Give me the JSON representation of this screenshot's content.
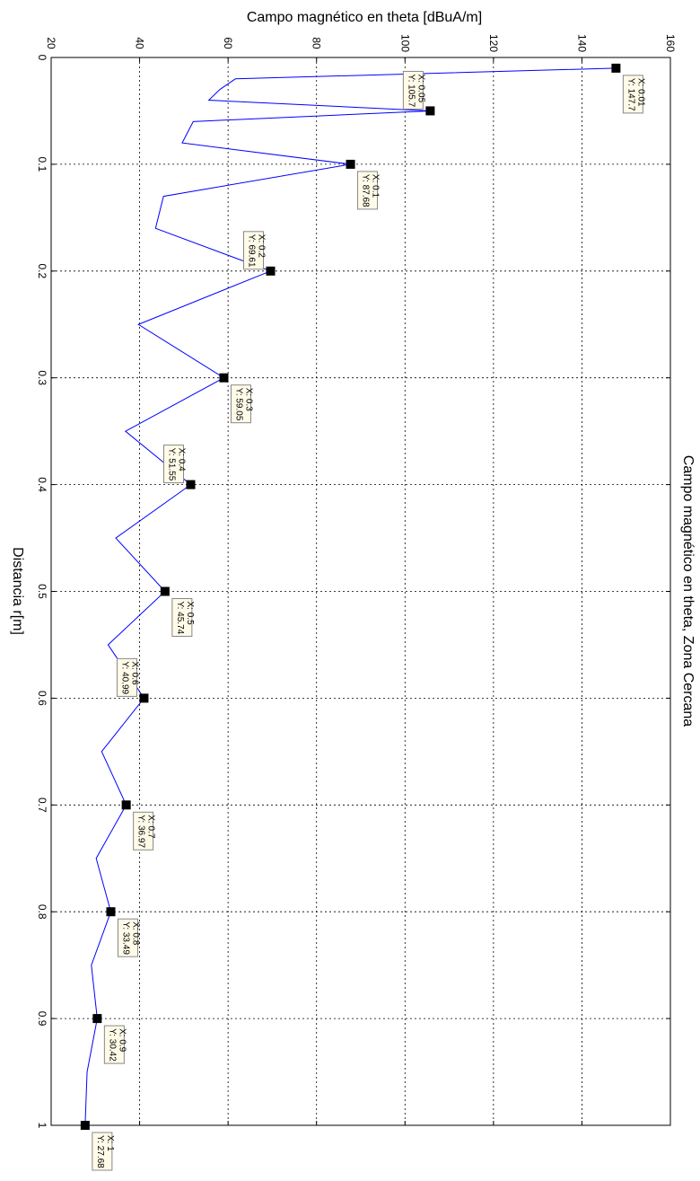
{
  "chart_data": {
    "type": "line",
    "title": "Campo magnético en theta, Zona Cercana",
    "xlabel": "Distancia r[m]",
    "ylabel": "Campo magnético en theta [dBuA/m]",
    "xlim": [
      0,
      1
    ],
    "ylim": [
      20,
      160
    ],
    "x_ticks": [
      "0",
      "0.1",
      "0.2",
      "0.3",
      "0.4",
      "0.5",
      "0.6",
      "0.7",
      "0.8",
      "0.9",
      "1"
    ],
    "y_ticks": [
      "20",
      "40",
      "60",
      "80",
      "100",
      "120",
      "140",
      "160"
    ],
    "grid": true,
    "line_color": "#0000ff",
    "marker_color": "#000000",
    "tooltip_bg": "#fffbe8",
    "curve_k": 27.68,
    "curve_x": [
      0.01,
      0.02,
      0.03,
      0.04,
      0.05,
      0.06,
      0.08,
      0.1,
      0.13,
      0.16,
      0.2,
      0.25,
      0.3,
      0.35,
      0.4,
      0.45,
      0.5,
      0.55,
      0.6,
      0.65,
      0.7,
      0.75,
      0.8,
      0.85,
      0.9,
      0.95,
      1.0
    ],
    "markers": [
      {
        "x": 0.01,
        "y": 147.7,
        "label_x": "X: 0.01",
        "label_y": "Y: 147.7"
      },
      {
        "x": 0.05,
        "y": 105.7,
        "label_x": "X: 0.05",
        "label_y": "Y: 105.7"
      },
      {
        "x": 0.1,
        "y": 87.68,
        "label_x": "X: 0.1",
        "label_y": "Y: 87.68"
      },
      {
        "x": 0.2,
        "y": 69.61,
        "label_x": "X: 0.2",
        "label_y": "Y: 69.61"
      },
      {
        "x": 0.3,
        "y": 59.05,
        "label_x": "X: 0.3",
        "label_y": "Y: 59.05"
      },
      {
        "x": 0.4,
        "y": 51.55,
        "label_x": "X: 0.4",
        "label_y": "Y: 51.55"
      },
      {
        "x": 0.5,
        "y": 45.74,
        "label_x": "X: 0.5",
        "label_y": "Y: 45.74"
      },
      {
        "x": 0.6,
        "y": 40.99,
        "label_x": "X: 0.6",
        "label_y": "Y: 40.99"
      },
      {
        "x": 0.7,
        "y": 36.97,
        "label_x": "X: 0.7",
        "label_y": "Y: 36.97"
      },
      {
        "x": 0.8,
        "y": 33.49,
        "label_x": "X: 0.8",
        "label_y": "Y: 33.49"
      },
      {
        "x": 0.9,
        "y": 30.42,
        "label_x": "X: 0.9",
        "label_y": "Y: 30.42"
      },
      {
        "x": 1.0,
        "y": 27.68,
        "label_x": "X: 1",
        "label_y": "Y: 27.68"
      }
    ]
  }
}
